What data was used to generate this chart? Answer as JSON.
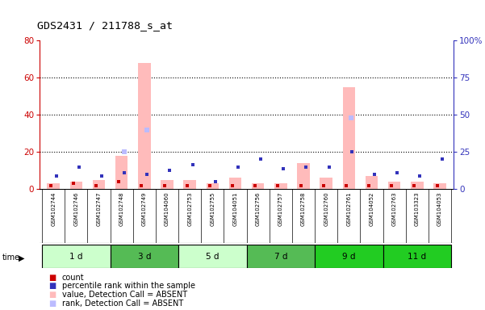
{
  "title": "GDS2431 / 211788_s_at",
  "samples": [
    "GSM102744",
    "GSM102746",
    "GSM102747",
    "GSM102748",
    "GSM102749",
    "GSM104060",
    "GSM102753",
    "GSM102755",
    "GSM104051",
    "GSM102756",
    "GSM102757",
    "GSM102758",
    "GSM102760",
    "GSM102761",
    "GSM104052",
    "GSM102763",
    "GSM103323",
    "GSM104053"
  ],
  "time_groups": [
    {
      "label": "1 d",
      "start": 0,
      "end": 3,
      "color": "#ccffcc"
    },
    {
      "label": "3 d",
      "start": 3,
      "end": 6,
      "color": "#55bb55"
    },
    {
      "label": "5 d",
      "start": 6,
      "end": 9,
      "color": "#ccffcc"
    },
    {
      "label": "7 d",
      "start": 9,
      "end": 12,
      "color": "#55bb55"
    },
    {
      "label": "9 d",
      "start": 12,
      "end": 15,
      "color": "#22cc22"
    },
    {
      "label": "11 d",
      "start": 15,
      "end": 18,
      "color": "#22cc22"
    }
  ],
  "count_values": [
    2,
    3,
    2,
    4,
    2,
    2,
    2,
    2,
    2,
    2,
    2,
    2,
    2,
    2,
    2,
    2,
    2,
    2
  ],
  "percentile_values": [
    7,
    12,
    7,
    9,
    8,
    10,
    13,
    4,
    12,
    16,
    11,
    12,
    12,
    20,
    8,
    9,
    7,
    16
  ],
  "absent_value_bars": [
    3,
    4,
    5,
    18,
    68,
    5,
    5,
    3,
    6,
    3,
    3,
    14,
    6,
    55,
    7,
    4,
    4,
    3
  ],
  "absent_rank_values": [
    0,
    0,
    0,
    25,
    40,
    0,
    0,
    0,
    0,
    0,
    0,
    0,
    0,
    48,
    0,
    0,
    0,
    0
  ],
  "ylim_left": [
    0,
    80
  ],
  "ylim_right": [
    0,
    100
  ],
  "yticks_left": [
    0,
    20,
    40,
    60,
    80
  ],
  "yticks_right": [
    0,
    25,
    50,
    75,
    100
  ],
  "ytick_labels_right": [
    "0",
    "25",
    "50",
    "75",
    "100%"
  ],
  "color_count": "#cc0000",
  "color_percentile": "#3333bb",
  "color_absent_value": "#ffbbbb",
  "color_absent_rank": "#bbbbff",
  "bg_color": "#ffffff",
  "sample_bg_color": "#cccccc"
}
